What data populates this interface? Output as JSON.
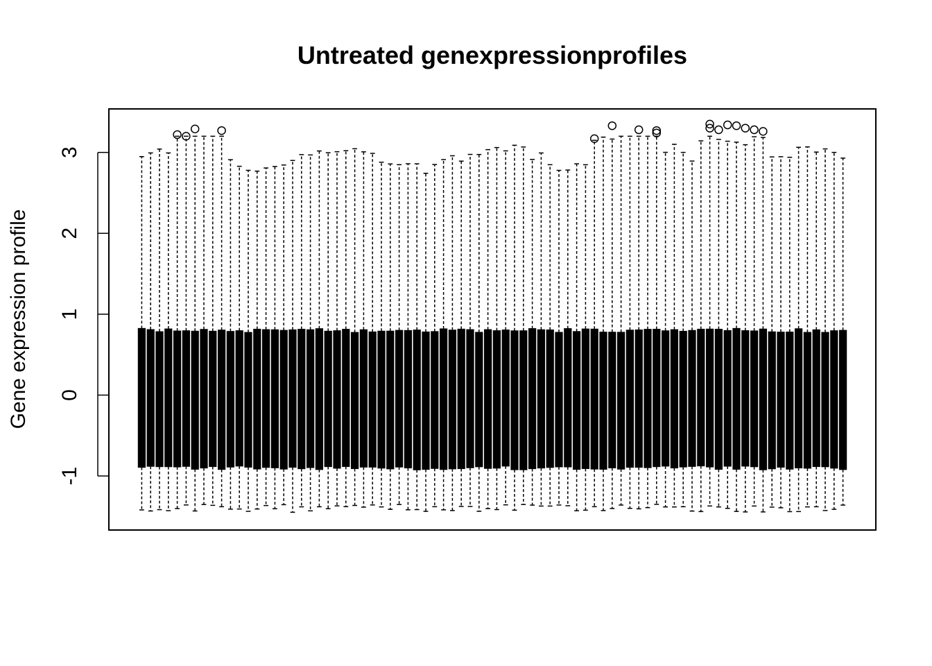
{
  "chart_data": {
    "type": "boxplot",
    "title": "Untreated genexpressionprofiles",
    "xlabel": "",
    "ylabel": "Gene expression profile",
    "ylim": [
      -1.6,
      3.6
    ],
    "yticks": [
      -1,
      0,
      1,
      2,
      3
    ],
    "ytick_labels": [
      "-1",
      "0",
      "1",
      "2",
      "3"
    ],
    "grid": false,
    "legend": "none",
    "n_boxes": 80,
    "box_range": {
      "lower_quartile": -0.9,
      "upper_quartile": 0.8
    },
    "whisker_ranges": {
      "lower_min": -1.45,
      "lower_max": -0.9,
      "upper_min": 0.8,
      "upper_max": 3.2
    },
    "outlier_points": [
      {
        "box": 4,
        "y": 3.22
      },
      {
        "box": 5,
        "y": 3.2
      },
      {
        "box": 6,
        "y": 3.29
      },
      {
        "box": 9,
        "y": 3.27
      },
      {
        "box": 51,
        "y": 3.17
      },
      {
        "box": 53,
        "y": 3.33
      },
      {
        "box": 56,
        "y": 3.28
      },
      {
        "box": 58,
        "y": 3.27
      },
      {
        "box": 58,
        "y": 3.24
      },
      {
        "box": 64,
        "y": 3.35
      },
      {
        "box": 64,
        "y": 3.3
      },
      {
        "box": 65,
        "y": 3.28
      },
      {
        "box": 66,
        "y": 3.34
      },
      {
        "box": 67,
        "y": 3.33
      },
      {
        "box": 68,
        "y": 3.3
      },
      {
        "box": 69,
        "y": 3.28
      },
      {
        "box": 70,
        "y": 3.26
      }
    ],
    "color": "#000000"
  }
}
